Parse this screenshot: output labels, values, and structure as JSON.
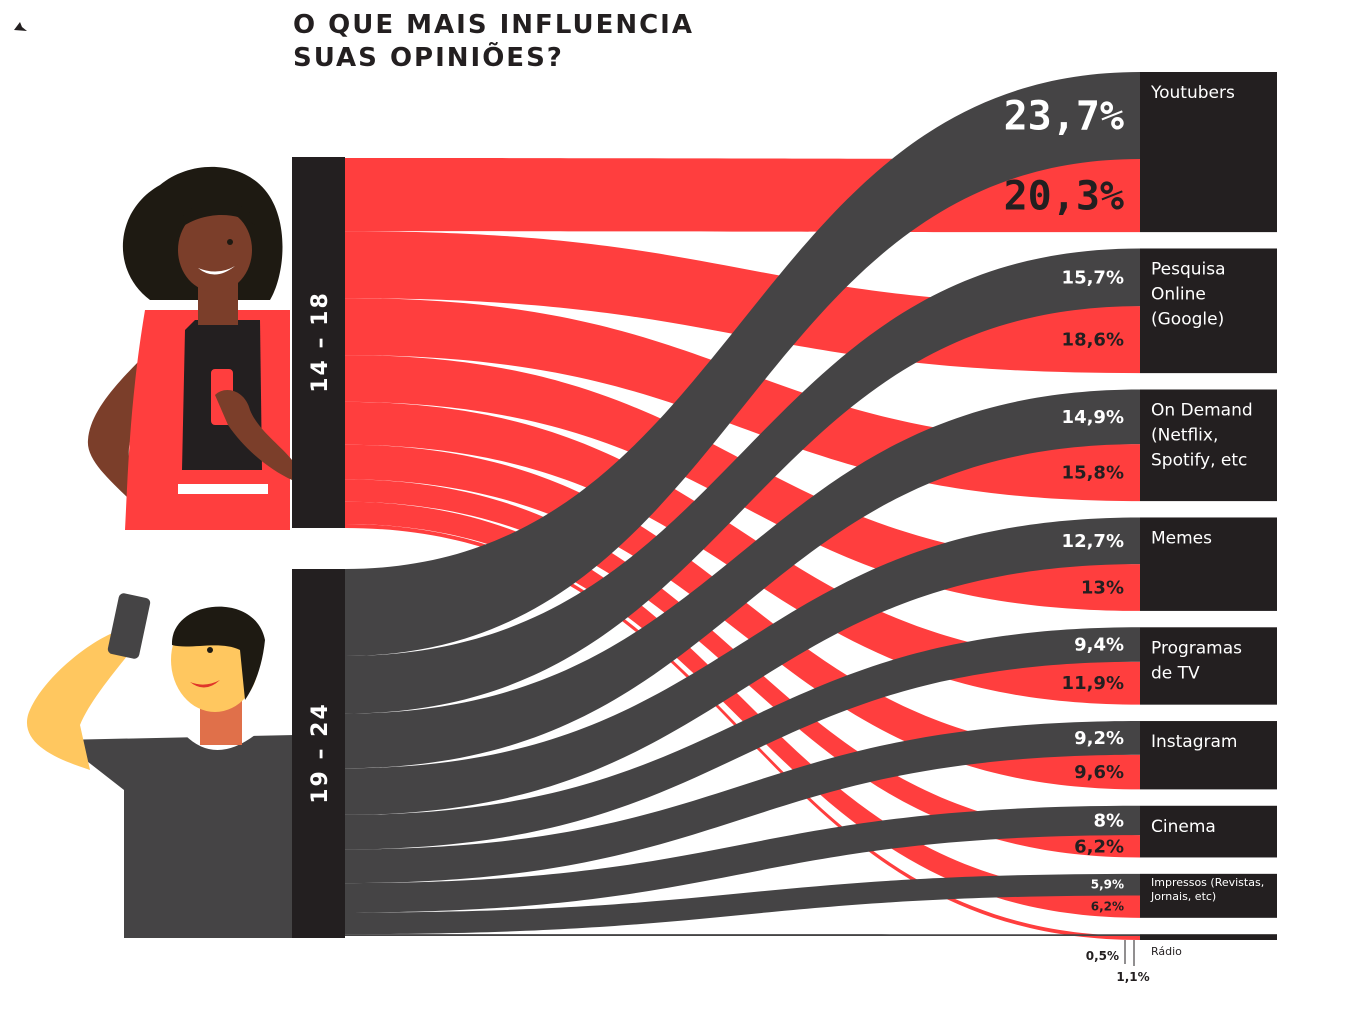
{
  "title_lines": [
    "O QUE MAIS INFLUENCIA",
    "SUAS OPINIÕES?"
  ],
  "colors": {
    "group_14_18": "#ff3e3e",
    "group_19_24": "#454445",
    "node_dark": "#231f20",
    "background": "#ffffff"
  },
  "groups": [
    {
      "key": "g1",
      "label": "14 – 18",
      "color": "#ff3e3e",
      "illustration": "woman-with-phone-icon"
    },
    {
      "key": "g2",
      "label": "19 – 24",
      "color": "#454445",
      "illustration": "man-taking-selfie-icon"
    }
  ],
  "categories": [
    {
      "key": "youtubers",
      "label_lines": [
        "Youtubers"
      ],
      "g2_label": "23,7%",
      "g1_label": "20,3%"
    },
    {
      "key": "pesquisa",
      "label_lines": [
        "Pesquisa",
        "Online",
        "(Google)"
      ],
      "g2_label": "15,7%",
      "g1_label": "18,6%"
    },
    {
      "key": "ondemand",
      "label_lines": [
        "On Demand",
        "(Netflix,",
        "Spotify, etc"
      ],
      "g2_label": "14,9%",
      "g1_label": "15,8%"
    },
    {
      "key": "memes",
      "label_lines": [
        "Memes"
      ],
      "g2_label": "12,7%",
      "g1_label": "13%"
    },
    {
      "key": "programas",
      "label_lines": [
        "Programas",
        "de TV"
      ],
      "g2_label": "9,4%",
      "g1_label": "11,9%"
    },
    {
      "key": "instagram",
      "label_lines": [
        "Instagram"
      ],
      "g2_label": "9,2%",
      "g1_label": "9,6%"
    },
    {
      "key": "cinema",
      "label_lines": [
        "Cinema"
      ],
      "g2_label": "8%",
      "g1_label": "6,2%"
    },
    {
      "key": "impressos",
      "label_lines": [
        "Impressos (Revistas,",
        "Jornais, etc)"
      ],
      "g2_label": "5,9%",
      "g1_label": "6,2%"
    },
    {
      "key": "radio",
      "label_lines": [
        "Rádio"
      ],
      "g2_label": "0,5%",
      "g1_label": "1,1%"
    }
  ],
  "chart_data": {
    "type": "sankey",
    "title": "O QUE MAIS INFLUENCIA SUAS OPINIÕES?",
    "sources": [
      "14 – 18",
      "19 – 24"
    ],
    "categories": [
      "Youtubers",
      "Pesquisa Online (Google)",
      "On Demand (Netflix, Spotify, etc",
      "Memes",
      "Programas de TV",
      "Instagram",
      "Cinema",
      "Impressos (Revistas, Jornais, etc)",
      "Rádio"
    ],
    "series": [
      {
        "name": "14 – 18",
        "values": [
          20.3,
          18.6,
          15.8,
          13,
          11.9,
          9.6,
          6.2,
          6.2,
          1.1
        ]
      },
      {
        "name": "19 – 24",
        "values": [
          23.7,
          15.7,
          14.9,
          12.7,
          9.4,
          9.2,
          8,
          5.9,
          0.5
        ]
      }
    ],
    "unit": "%"
  }
}
